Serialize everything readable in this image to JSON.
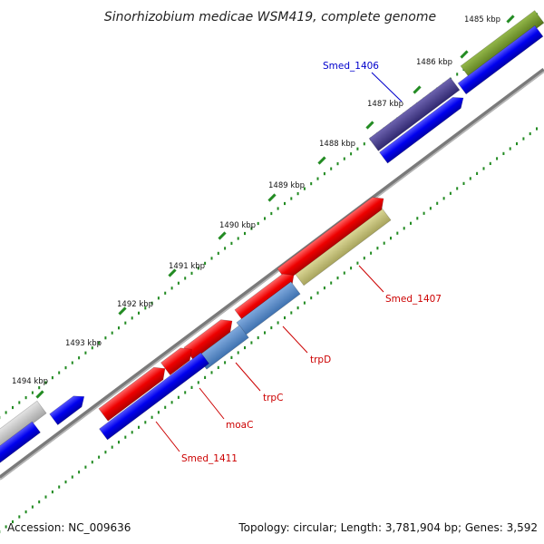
{
  "title": "Sinorhizobium medicae WSM419, complete genome",
  "footer": {
    "accession": "Accession: NC_009636",
    "summary": "Topology: circular; Length: 3,781,904 bp; Genes: 3,592"
  },
  "ticks": [
    "1485 kbp",
    "1486 kbp",
    "1487 kbp",
    "1488 kbp",
    "1489 kbp",
    "1490 kbp",
    "1491 kbp",
    "1492 kbp",
    "1493 kbp",
    "1494 kbp"
  ],
  "gene_labels": [
    {
      "key": "smed1406",
      "text": "Smed_1406"
    },
    {
      "key": "smed1407",
      "text": "Smed_1407"
    },
    {
      "key": "trpd",
      "text": "trpD"
    },
    {
      "key": "trpc",
      "text": "trpC"
    },
    {
      "key": "moac",
      "text": "moaC"
    },
    {
      "key": "smed1411",
      "text": "Smed_1411"
    }
  ],
  "colors": {
    "cds": "#0000ee",
    "gene_red": "#ee0000",
    "gene_steel": "#4f86c6",
    "gene_olive": "#bdb76b",
    "gene_darkolive": "#6b8e23",
    "gene_slate": "#483d8b",
    "gene_gray": "#c8c8c8",
    "backbone": "#808080",
    "tick_green": "#228b22",
    "label_red": "#cc0000",
    "label_blue": "#0000cc"
  }
}
